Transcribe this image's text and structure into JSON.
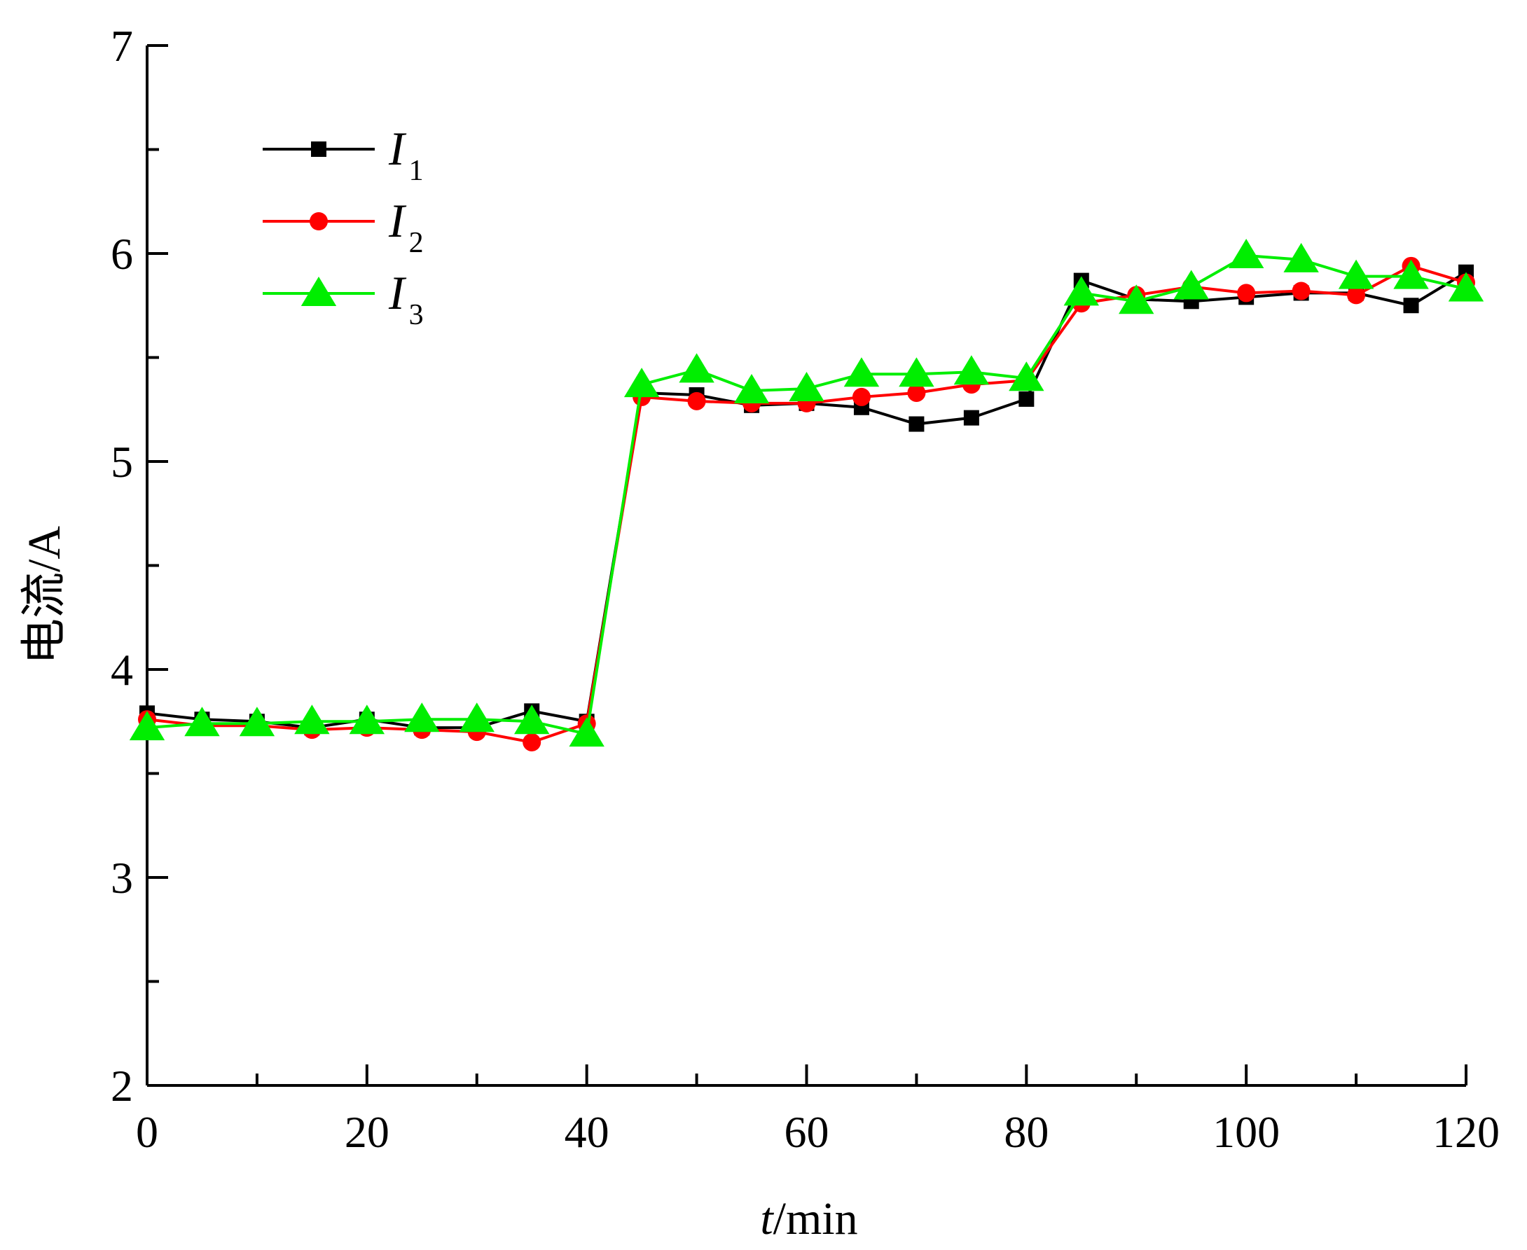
{
  "chart_data": {
    "type": "line",
    "xlabel_italic": "t",
    "xlabel_unit": "/min",
    "ylabel": "电流/A",
    "xlim": [
      0,
      120
    ],
    "ylim": [
      2,
      7
    ],
    "x_ticks": [
      0,
      20,
      40,
      60,
      80,
      100,
      120
    ],
    "y_ticks": [
      2,
      3,
      4,
      5,
      6,
      7
    ],
    "x_minor_step": 10,
    "y_minor_step": 0.5,
    "grid": false,
    "legend_position": "top-left",
    "x": [
      0,
      5,
      10,
      15,
      20,
      25,
      30,
      35,
      40,
      45,
      50,
      55,
      60,
      65,
      70,
      75,
      80,
      85,
      90,
      95,
      100,
      105,
      110,
      115,
      120
    ],
    "series": [
      {
        "name": "I",
        "subscript": "1",
        "color": "#000000",
        "marker": "square",
        "values": [
          3.79,
          3.76,
          3.75,
          3.72,
          3.76,
          3.72,
          3.72,
          3.8,
          3.75,
          5.33,
          5.32,
          5.27,
          5.28,
          5.26,
          5.18,
          5.21,
          5.3,
          5.87,
          5.78,
          5.77,
          5.79,
          5.81,
          5.81,
          5.75,
          5.91
        ]
      },
      {
        "name": "I",
        "subscript": "2",
        "color": "#ff0000",
        "marker": "circle",
        "values": [
          3.76,
          3.73,
          3.73,
          3.71,
          3.72,
          3.71,
          3.7,
          3.65,
          3.74,
          5.31,
          5.29,
          5.28,
          5.28,
          5.31,
          5.33,
          5.37,
          5.39,
          5.76,
          5.8,
          5.84,
          5.81,
          5.82,
          5.8,
          5.94,
          5.86
        ]
      },
      {
        "name": "I",
        "subscript": "3",
        "color": "#00ee00",
        "marker": "triangle",
        "values": [
          3.72,
          3.74,
          3.74,
          3.75,
          3.75,
          3.76,
          3.76,
          3.75,
          3.69,
          5.37,
          5.44,
          5.34,
          5.35,
          5.42,
          5.42,
          5.43,
          5.4,
          5.81,
          5.77,
          5.84,
          5.99,
          5.97,
          5.89,
          5.89,
          5.83
        ]
      }
    ]
  }
}
